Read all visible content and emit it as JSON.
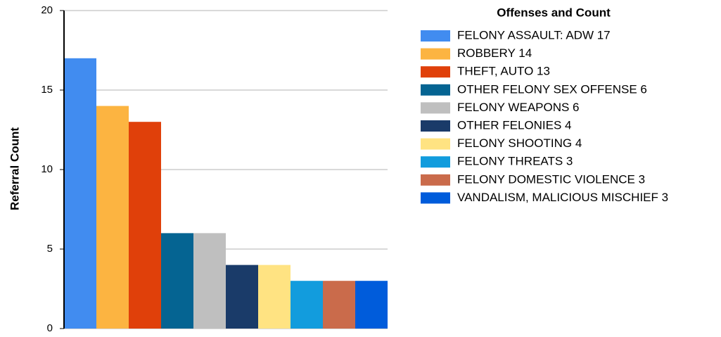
{
  "chart_data": {
    "type": "bar",
    "y_label": "Referral Count",
    "legend_title": "Offenses and Count",
    "categories": [
      "FELONY ASSAULT: ADW 17",
      "ROBBERY 14",
      "THEFT, AUTO 13",
      "OTHER FELONY SEX OFFENSE 6",
      "FELONY WEAPONS 6",
      "OTHER FELONIES 4",
      "FELONY SHOOTING 4",
      "FELONY THREATS 3",
      "FELONY DOMESTIC VIOLENCE 3",
      "VANDALISM, MALICIOUS MISCHIEF 3"
    ],
    "values": [
      17,
      14,
      13,
      6,
      6,
      4,
      4,
      3,
      3,
      3
    ],
    "colors": [
      "#418cf0",
      "#fcb441",
      "#e0400a",
      "#056492",
      "#bfbfbf",
      "#1a3b69",
      "#ffe382",
      "#129cdd",
      "#ca6b4b",
      "#005cdb"
    ],
    "ylim": [
      0,
      20
    ],
    "yticks": [
      0,
      5,
      10,
      15,
      20
    ],
    "grid": true,
    "legend": "right"
  }
}
